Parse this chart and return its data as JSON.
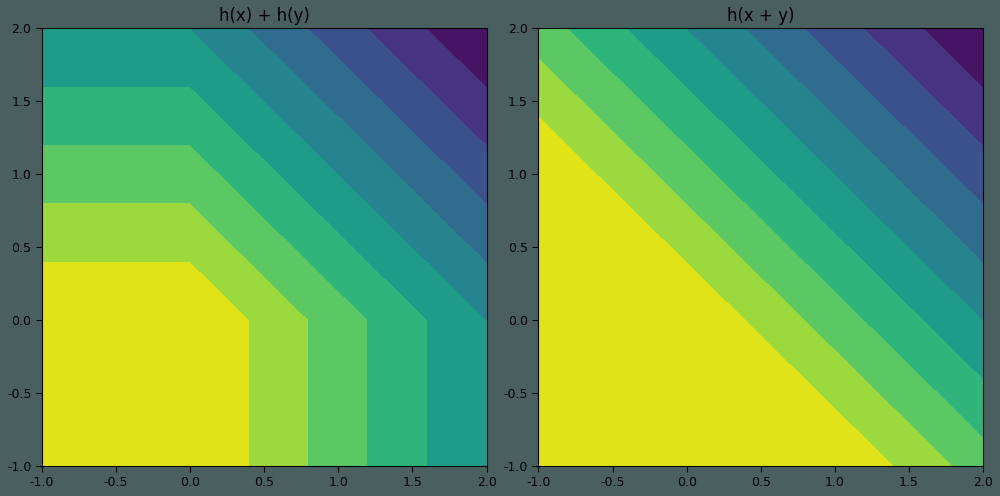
{
  "title_left": "h(x) + h(y)",
  "title_right": "h(x + y)",
  "xlim": [
    -1.0,
    2.0
  ],
  "ylim": [
    -1.0,
    2.0
  ],
  "cmap": "viridis_r",
  "n_levels": 10,
  "grid_points": 400,
  "figsize": [
    10.0,
    4.96
  ],
  "dpi": 100,
  "background_color": "#4a6060",
  "title_fontsize": 12,
  "tick_fontsize": 9
}
